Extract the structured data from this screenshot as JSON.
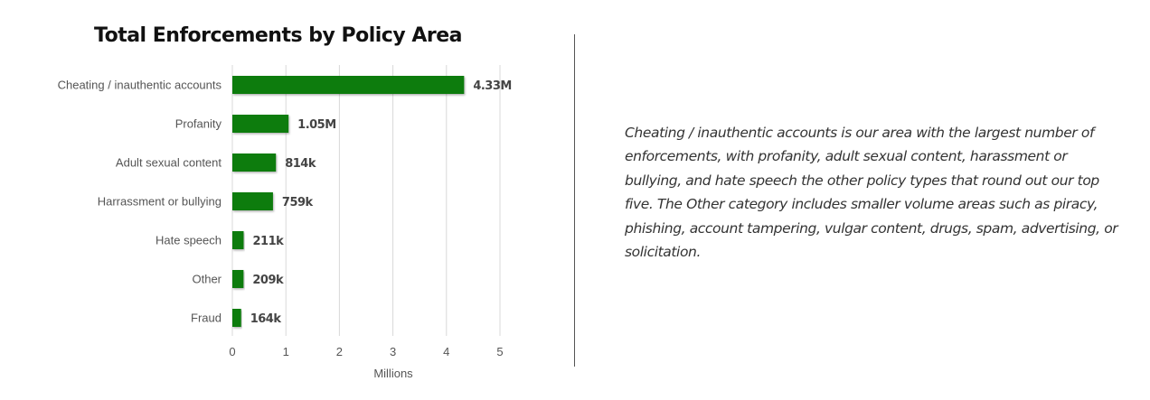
{
  "chart_data": {
    "type": "bar",
    "orientation": "horizontal",
    "title": "Total Enforcements by Policy Area",
    "xlabel": "Millions",
    "ylabel": "",
    "xlim": [
      0,
      5
    ],
    "xticks": [
      "0",
      "1",
      "2",
      "3",
      "4",
      "5"
    ],
    "grid": true,
    "categories": [
      "Cheating / inauthentic accounts",
      "Profanity",
      "Adult sexual content",
      "Harrassment or bullying",
      "Hate speech",
      "Other",
      "Fraud"
    ],
    "values": [
      4.33,
      1.05,
      0.814,
      0.759,
      0.211,
      0.209,
      0.164
    ],
    "data_labels": [
      "4.33M",
      "1.05M",
      "814k",
      "759k",
      "211k",
      "209k",
      "164k"
    ],
    "bar_color": "#107c10"
  },
  "description": {
    "lines": [
      "Cheating / inauthentic accounts is our area with the largest number of",
      "enforcements, with profanity, adult sexual content, harassment or",
      "bullying, and hate speech the other policy types that round out our top",
      "five. The Other category includes smaller volume areas such as piracy,",
      "phishing, account tampering, vulgar content, drugs, spam, advertising, or",
      "solicitation."
    ]
  }
}
